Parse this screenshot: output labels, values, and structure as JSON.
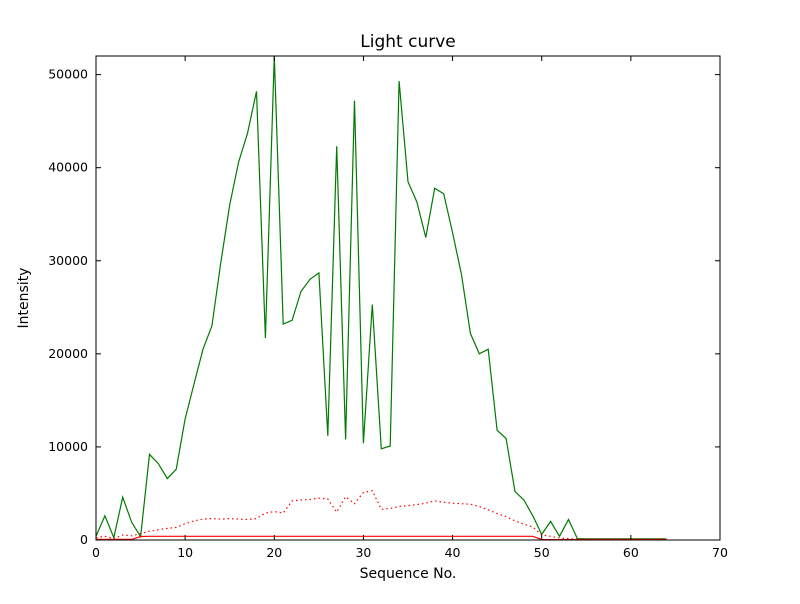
{
  "figure": {
    "background": "#ffffff",
    "frame_color": "#000000"
  },
  "chart_data": {
    "type": "line",
    "title": "Light curve",
    "xlabel": "Sequence No.",
    "ylabel": "Intensity",
    "xlim": [
      0,
      70
    ],
    "ylim": [
      0,
      52000
    ],
    "xticks": [
      0,
      10,
      20,
      30,
      40,
      50,
      60,
      70
    ],
    "yticks": [
      0,
      10000,
      20000,
      30000,
      40000,
      50000
    ],
    "grid": false,
    "legend": "none",
    "x": [
      0,
      1,
      2,
      3,
      4,
      5,
      6,
      7,
      8,
      9,
      10,
      11,
      12,
      13,
      14,
      15,
      16,
      17,
      18,
      19,
      20,
      21,
      22,
      23,
      24,
      25,
      26,
      27,
      28,
      29,
      30,
      31,
      32,
      33,
      34,
      35,
      36,
      37,
      38,
      39,
      40,
      41,
      42,
      43,
      44,
      45,
      46,
      47,
      48,
      49,
      50,
      51,
      52,
      53,
      54,
      55,
      56,
      57,
      58,
      59,
      60,
      61,
      62,
      63,
      64
    ],
    "series": [
      {
        "name": "green-solid",
        "color": "#007a00",
        "style": "solid",
        "values": [
          400,
          2600,
          250,
          4600,
          1900,
          350,
          9200,
          8200,
          6600,
          7600,
          13000,
          16800,
          20500,
          23000,
          29800,
          36000,
          40600,
          43700,
          48200,
          21700,
          52000,
          23200,
          23600,
          26700,
          28000,
          28700,
          11200,
          42300,
          10800,
          47200,
          10400,
          25300,
          9800,
          10100,
          49300,
          38500,
          36300,
          32500,
          37800,
          37200,
          33000,
          28500,
          22200,
          20000,
          20500,
          11800,
          10900,
          5200,
          4300,
          2600,
          600,
          2000,
          400,
          2200,
          150,
          120,
          120,
          120,
          120,
          120,
          120,
          120,
          120,
          120,
          120
        ]
      },
      {
        "name": "red-dotted",
        "color": "#ff0000",
        "style": "dotted",
        "values": [
          250,
          400,
          150,
          550,
          450,
          700,
          950,
          1100,
          1250,
          1350,
          1750,
          2050,
          2250,
          2300,
          2250,
          2300,
          2250,
          2200,
          2300,
          2900,
          3050,
          2900,
          4200,
          4300,
          4350,
          4500,
          4400,
          3000,
          4650,
          3900,
          5100,
          5300,
          3300,
          3400,
          3600,
          3700,
          3800,
          3950,
          4200,
          4050,
          3950,
          3900,
          3850,
          3600,
          3250,
          2850,
          2500,
          2050,
          1700,
          1400,
          550,
          400,
          200,
          150,
          100,
          100,
          100,
          100,
          100,
          100,
          100,
          100,
          100,
          100,
          100
        ]
      },
      {
        "name": "red-solid",
        "color": "#ff0000",
        "style": "solid",
        "values": [
          60,
          60,
          60,
          60,
          60,
          380,
          400,
          400,
          400,
          400,
          400,
          400,
          400,
          400,
          400,
          400,
          400,
          400,
          400,
          400,
          400,
          400,
          400,
          400,
          400,
          400,
          400,
          400,
          400,
          400,
          400,
          400,
          400,
          400,
          400,
          400,
          400,
          400,
          400,
          400,
          400,
          400,
          400,
          400,
          400,
          400,
          400,
          400,
          400,
          400,
          40,
          40,
          40,
          40,
          40,
          40,
          40,
          40,
          40,
          40,
          40,
          40,
          40,
          40,
          40
        ]
      }
    ]
  }
}
